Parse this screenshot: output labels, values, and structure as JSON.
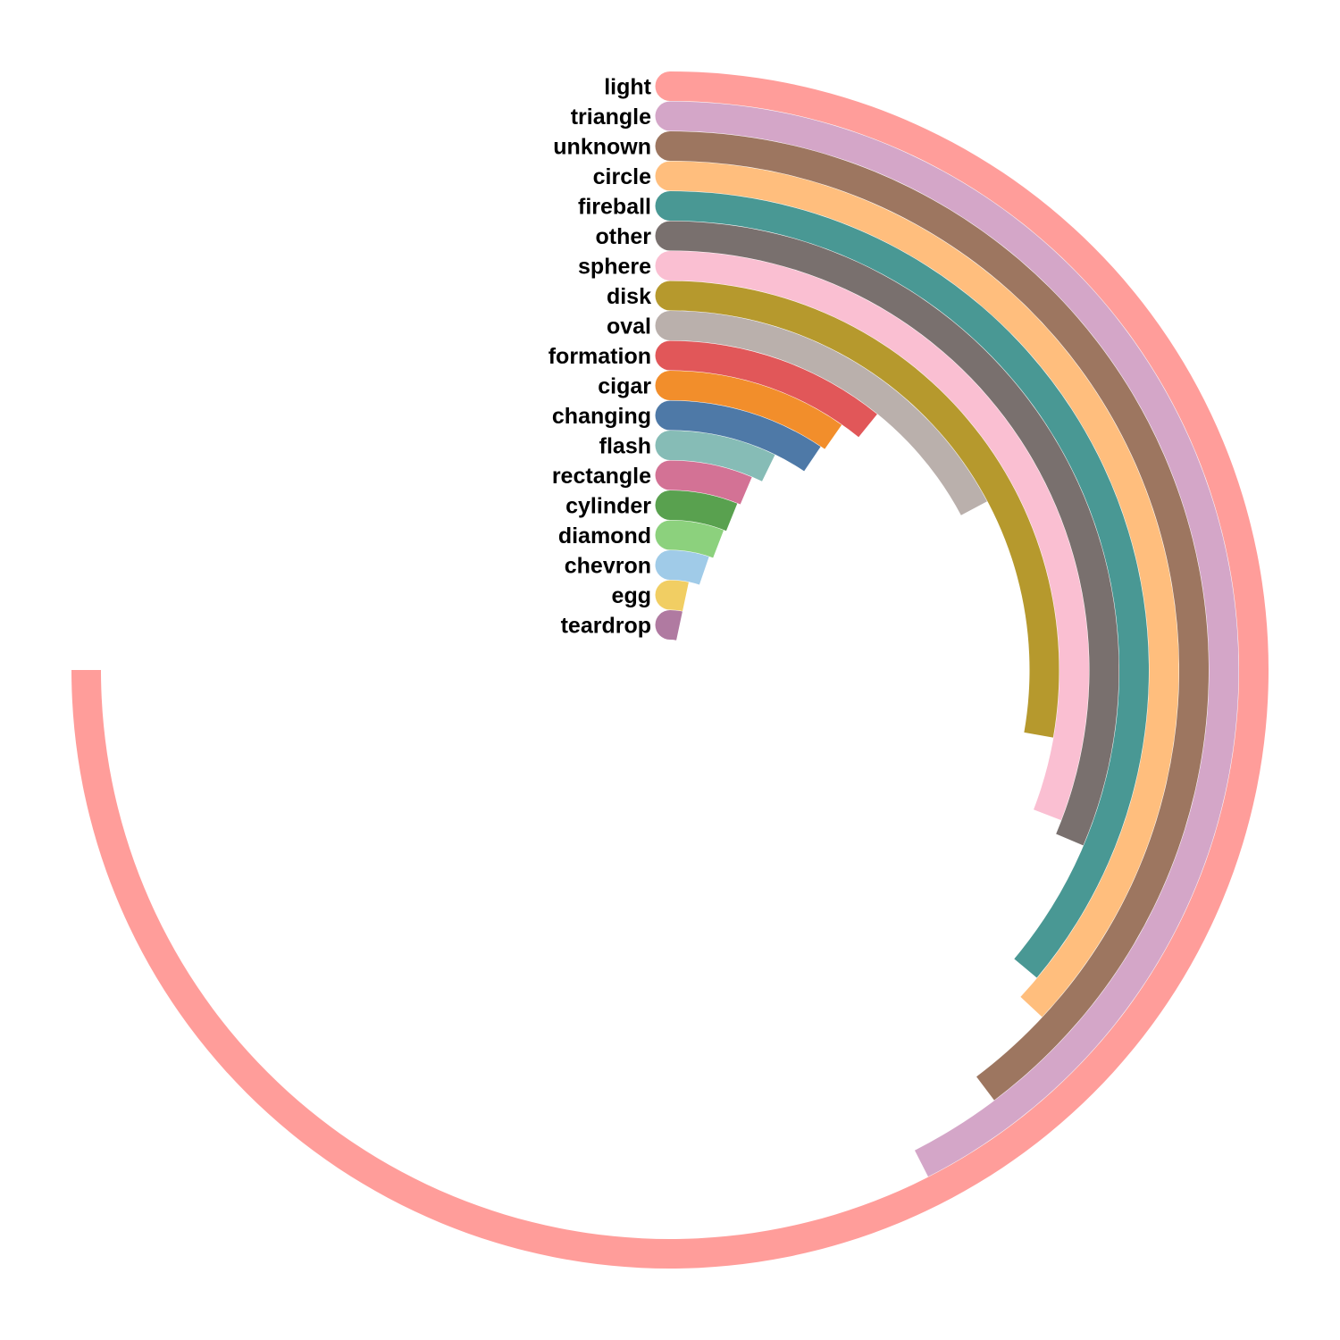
{
  "chart_data": {
    "type": "radial_bar",
    "categories": [
      "light",
      "triangle",
      "unknown",
      "circle",
      "fireball",
      "other",
      "sphere",
      "disk",
      "oval",
      "formation",
      "cigar",
      "changing",
      "flash",
      "rectangle",
      "cylinder",
      "diamond",
      "chevron",
      "egg",
      "teardrop"
    ],
    "values": [
      270,
      153,
      143,
      133,
      130,
      113,
      111,
      100,
      62,
      39,
      35,
      34,
      26,
      23,
      22,
      21,
      19,
      12,
      12
    ],
    "value_unit": "degrees of arc",
    "max_angle": 360,
    "colors": [
      "#FF9D9A",
      "#D4A6C8",
      "#9D7660",
      "#FFBE7D",
      "#499894",
      "#79706E",
      "#FABFD2",
      "#B6992D",
      "#BAB0AC",
      "#E15759",
      "#F28E2B",
      "#4E79A7",
      "#86BCB6",
      "#D37295",
      "#59A14F",
      "#8CD17D",
      "#A0CBE8",
      "#F1CE63",
      "#B07AA1"
    ],
    "title": "",
    "xlabel": "",
    "ylabel": ""
  }
}
